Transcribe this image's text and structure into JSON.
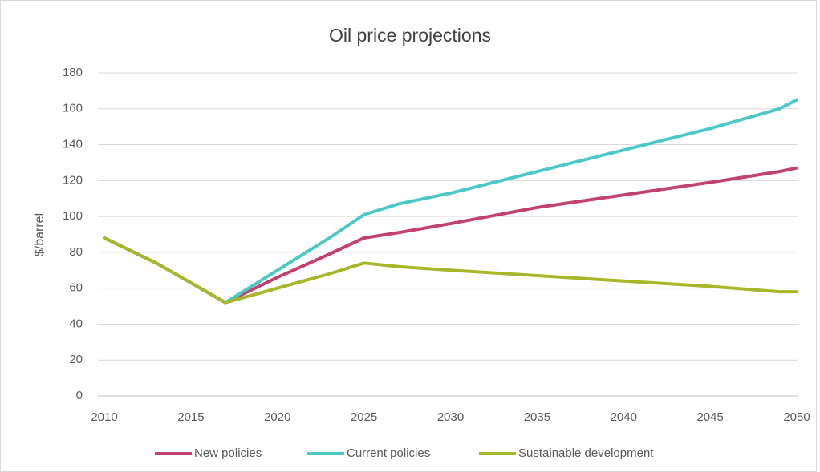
{
  "chart_data": {
    "type": "line",
    "title": "Oil price projections",
    "y_label": "$/barrel",
    "x": [
      2010,
      2013,
      2015,
      2017,
      2020,
      2023,
      2025,
      2027,
      2030,
      2035,
      2040,
      2045,
      2049,
      2050
    ],
    "series": [
      {
        "name": "New policies",
        "color": "#c2426f",
        "values": [
          88,
          74,
          63,
          52,
          66,
          79,
          88,
          91,
          96,
          105,
          112,
          119,
          125,
          127
        ]
      },
      {
        "name": "Current policies",
        "color": "#4cc9c6",
        "values": [
          88,
          74,
          63,
          52,
          70,
          88,
          101,
          107,
          113,
          125,
          137,
          149,
          160,
          165
        ]
      },
      {
        "name": "Sustainable development",
        "color": "#a8b72a",
        "values": [
          88,
          74,
          63,
          52,
          60,
          68,
          74,
          72,
          70,
          67,
          64,
          61,
          58,
          58
        ]
      }
    ],
    "xlim": [
      2010,
      2050
    ],
    "xticks": [
      2010,
      2015,
      2020,
      2025,
      2030,
      2035,
      2040,
      2045,
      2050
    ],
    "ylim": [
      0,
      180
    ],
    "yticks": [
      0,
      20,
      40,
      60,
      80,
      100,
      120,
      140,
      160,
      180
    ],
    "grid": true,
    "legend": "bottom"
  }
}
